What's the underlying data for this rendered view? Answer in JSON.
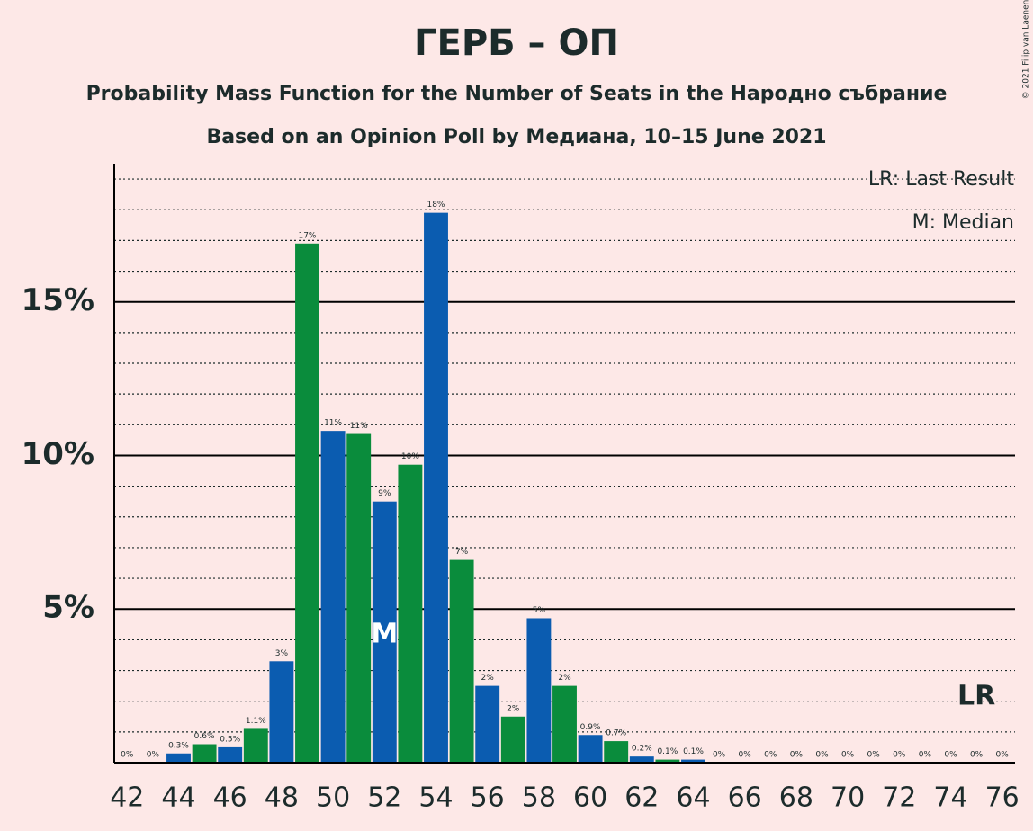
{
  "chart_data": {
    "type": "bar",
    "title": "ГЕРБ – ОП",
    "subtitle": "Probability Mass Function for the Number of Seats in the Народно събрание",
    "subtitle2": "Based on an Opinion Poll by Медиана, 10–15 June 2021",
    "copyright": "© 2021 Filip van Laenen",
    "x": [
      42,
      43,
      44,
      45,
      46,
      47,
      48,
      49,
      50,
      51,
      52,
      53,
      54,
      55,
      56,
      57,
      58,
      59,
      60,
      61,
      62,
      63,
      64,
      65,
      66,
      67,
      68,
      69,
      70,
      71,
      72,
      73,
      74,
      75,
      76
    ],
    "values": [
      0,
      0,
      0.3,
      0.6,
      0.5,
      1.1,
      3.3,
      16.9,
      10.8,
      10.7,
      8.5,
      9.7,
      17.9,
      6.6,
      2.5,
      1.5,
      4.7,
      2.5,
      0.9,
      0.7,
      0.2,
      0.1,
      0.1,
      0,
      0,
      0,
      0,
      0,
      0,
      0,
      0,
      0,
      0,
      0,
      0
    ],
    "value_labels": [
      "0%",
      "0%",
      "0.3%",
      "0.6%",
      "0.5%",
      "1.1%",
      "3%",
      "17%",
      "11%",
      "11%",
      "9%",
      "10%",
      "18%",
      "7%",
      "2%",
      "2%",
      "5%",
      "2%",
      "0.9%",
      "0.7%",
      "0.2%",
      "0.1%",
      "0.1%",
      "0%",
      "0%",
      "0%",
      "0%",
      "0%",
      "0%",
      "0%",
      "0%",
      "0%",
      "0%",
      "0%",
      "0%"
    ],
    "colors": [
      "#0b5cb0",
      "#0a8c3c",
      "#0b5cb0",
      "#0a8c3c",
      "#0b5cb0",
      "#0a8c3c",
      "#0b5cb0",
      "#0a8c3c",
      "#0b5cb0",
      "#0a8c3c",
      "#0b5cb0",
      "#0a8c3c",
      "#0b5cb0",
      "#0a8c3c",
      "#0b5cb0",
      "#0a8c3c",
      "#0b5cb0",
      "#0a8c3c",
      "#0b5cb0",
      "#0a8c3c",
      "#0b5cb0",
      "#0a8c3c",
      "#0b5cb0",
      "#0a8c3c",
      "#0b5cb0",
      "#0a8c3c",
      "#0b5cb0",
      "#0a8c3c",
      "#0b5cb0",
      "#0a8c3c",
      "#0b5cb0",
      "#0a8c3c",
      "#0b5cb0",
      "#0a8c3c",
      "#0b5cb0"
    ],
    "xlim": [
      41.5,
      76.5
    ],
    "xticks": [
      42,
      44,
      46,
      48,
      50,
      52,
      54,
      56,
      58,
      60,
      62,
      64,
      66,
      68,
      70,
      72,
      74,
      76
    ],
    "ylim": [
      0,
      19.5
    ],
    "yticks": [
      {
        "value": 5,
        "label": "5%"
      },
      {
        "value": 10,
        "label": "10%"
      },
      {
        "value": 15,
        "label": "15%"
      }
    ],
    "minor_yticks": [
      1,
      2,
      3,
      4,
      6,
      7,
      8,
      9,
      11,
      12,
      13,
      14,
      16,
      17,
      18,
      19
    ],
    "median": {
      "x": 52,
      "label": "M"
    },
    "last_result": {
      "x": 75,
      "label": "LR"
    },
    "legend": [
      "LR: Last Result",
      "M: Median"
    ]
  }
}
